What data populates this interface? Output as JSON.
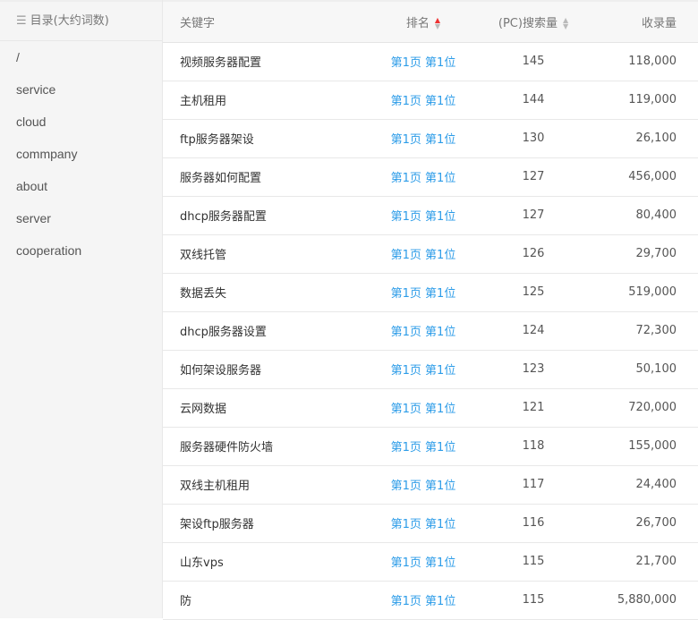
{
  "sidebar": {
    "title": "目录(大约词数)",
    "icon": "list-icon",
    "items": [
      "/",
      "service",
      "cloud",
      "commpany",
      "about",
      "server",
      "cooperation"
    ]
  },
  "table": {
    "headers": {
      "keyword": "关键字",
      "rank": "排名",
      "search": "(PC)搜索量",
      "indexed": "收录量"
    },
    "sort": {
      "column": "rank",
      "direction": "asc",
      "active_color": "#e33333"
    },
    "rows": [
      [
        "视频服务器配置",
        "第1页 第1位",
        "145",
        "118,000"
      ],
      [
        "主机租用",
        "第1页 第1位",
        "144",
        "119,000"
      ],
      [
        "ftp服务器架设",
        "第1页 第1位",
        "130",
        "26,100"
      ],
      [
        "服务器如何配置",
        "第1页 第1位",
        "127",
        "456,000"
      ],
      [
        "dhcp服务器配置",
        "第1页 第1位",
        "127",
        "80,400"
      ],
      [
        "双线托管",
        "第1页 第1位",
        "126",
        "29,700"
      ],
      [
        "数据丢失",
        "第1页 第1位",
        "125",
        "519,000"
      ],
      [
        "dhcp服务器设置",
        "第1页 第1位",
        "124",
        "72,300"
      ],
      [
        "如何架设服务器",
        "第1页 第1位",
        "123",
        "50,100"
      ],
      [
        "云网数据",
        "第1页 第1位",
        "121",
        "720,000"
      ],
      [
        "服务器硬件防火墙",
        "第1页 第1位",
        "118",
        "155,000"
      ],
      [
        "双线主机租用",
        "第1页 第1位",
        "117",
        "24,400"
      ],
      [
        "架设ftp服务器",
        "第1页 第1位",
        "116",
        "26,700"
      ],
      [
        "山东vps",
        "第1页 第1位",
        "115",
        "21,700"
      ],
      [
        "防",
        "第1页 第1位",
        "115",
        "5,880,000"
      ]
    ]
  }
}
